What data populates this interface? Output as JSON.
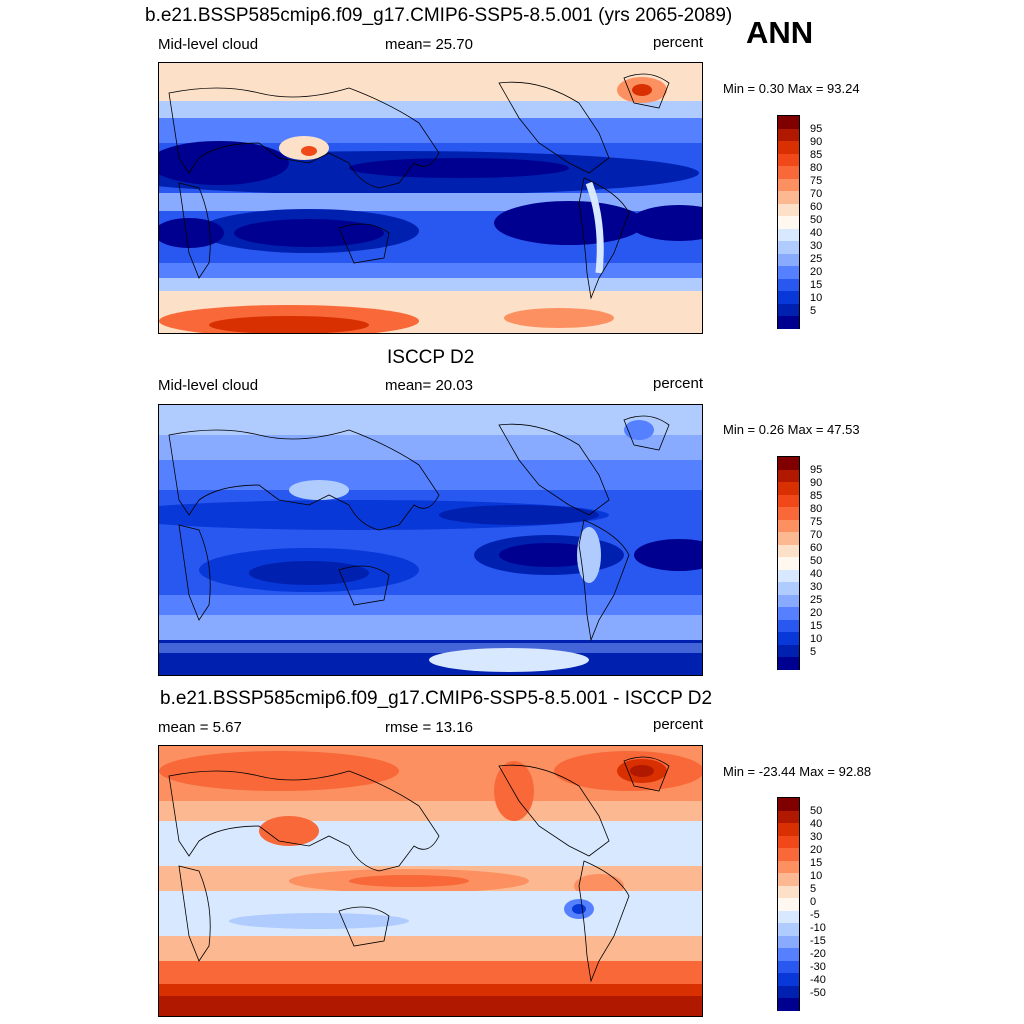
{
  "season": "ANN",
  "panels": [
    {
      "id": "model",
      "title": "b.e21.BSSP585cmip6.f09_g17.CMIP6-SSP5-8.5.001 (yrs 2065-2089)",
      "left_label": "Mid-level cloud",
      "center_label": "mean=  25.70",
      "right_label": "percent",
      "minmax": "Min =   0.30 Max =  93.24",
      "colorbar": {
        "labels": [
          "95",
          "90",
          "85",
          "80",
          "75",
          "70",
          "60",
          "50",
          "40",
          "30",
          "25",
          "20",
          "15",
          "10",
          "5"
        ],
        "colors": [
          "#800000",
          "#b01800",
          "#d83000",
          "#f04818",
          "#f86838",
          "#fc9060",
          "#fcb890",
          "#fde0c8",
          "#fff8f0",
          "#d8e8ff",
          "#b0ccff",
          "#88aaff",
          "#5580ff",
          "#2858f0",
          "#0838d8",
          "#0020b0",
          "#000090"
        ]
      }
    },
    {
      "id": "obs",
      "title": "ISCCP D2",
      "left_label": "Mid-level cloud",
      "center_label": "mean=  20.03",
      "right_label": "percent",
      "minmax": "Min =   0.26 Max =  47.53",
      "colorbar": {
        "labels": [
          "95",
          "90",
          "85",
          "80",
          "75",
          "70",
          "60",
          "50",
          "40",
          "30",
          "25",
          "20",
          "15",
          "10",
          "5"
        ],
        "colors": [
          "#800000",
          "#b01800",
          "#d83000",
          "#f04818",
          "#f86838",
          "#fc9060",
          "#fcb890",
          "#fde0c8",
          "#fff8f0",
          "#d8e8ff",
          "#b0ccff",
          "#88aaff",
          "#5580ff",
          "#2858f0",
          "#0838d8",
          "#0020b0",
          "#000090"
        ]
      }
    },
    {
      "id": "diff",
      "title": "b.e21.BSSP585cmip6.f09_g17.CMIP6-SSP5-8.5.001 - ISCCP D2",
      "left_label": "mean =   5.67",
      "center_label": "rmse =  13.16",
      "right_label": "percent",
      "minmax": "Min = -23.44 Max =  92.88",
      "colorbar": {
        "labels": [
          "50",
          "40",
          "30",
          "20",
          "15",
          "10",
          "5",
          "0",
          "-5",
          "-10",
          "-15",
          "-20",
          "-30",
          "-40",
          "-50"
        ],
        "colors": [
          "#800000",
          "#b01800",
          "#d83000",
          "#f04818",
          "#f86838",
          "#fc9060",
          "#fcb890",
          "#fde0c8",
          "#fff8f0",
          "#d8e8ff",
          "#b0ccff",
          "#88aaff",
          "#5580ff",
          "#2858f0",
          "#0838d8",
          "#0020b0",
          "#000090"
        ]
      }
    }
  ]
}
